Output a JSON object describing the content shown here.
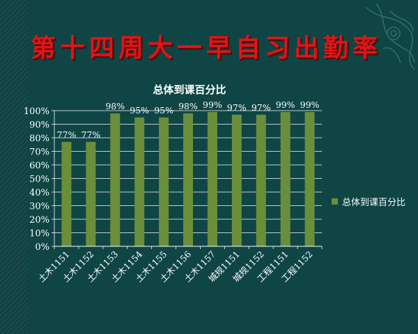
{
  "slide": {
    "title": "第十四周大一早自习出勤率"
  },
  "colors": {
    "background": "#0f4545",
    "title": "#e01616",
    "bar": "#6b8e3a",
    "text": "#ffffff"
  },
  "chart_data": {
    "type": "bar",
    "title": "总体到课百分比",
    "categories": [
      "土木1151",
      "土木1152",
      "土木1153",
      "土木1154",
      "土木1155",
      "土木1156",
      "土木1157",
      "城规1151",
      "城规1152",
      "工程1151",
      "工程1152"
    ],
    "series": [
      {
        "name": "总体到课百分比",
        "values": [
          0.77,
          0.77,
          0.98,
          0.95,
          0.95,
          0.98,
          0.99,
          0.97,
          0.97,
          0.99,
          0.99
        ],
        "labels": [
          "77%",
          "77%",
          "98%",
          "95%",
          "95%",
          "98%",
          "99%",
          "97%",
          "97%",
          "99%",
          "99%"
        ]
      }
    ],
    "yticks": [
      "0%",
      "10%",
      "20%",
      "30%",
      "40%",
      "50%",
      "60%",
      "70%",
      "80%",
      "90%",
      "100%"
    ],
    "ylim": [
      0,
      1
    ],
    "grid": true,
    "legend": "right"
  }
}
